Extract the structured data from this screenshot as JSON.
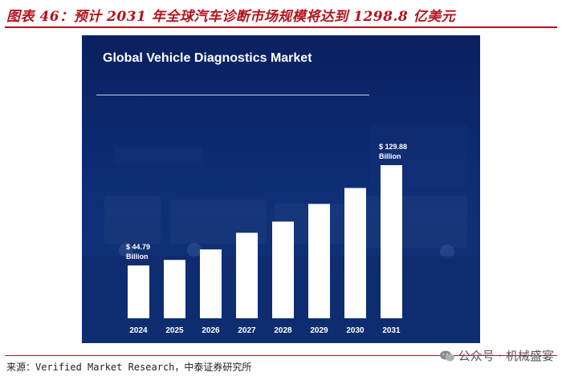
{
  "figure": {
    "title": "图表 46：预计 2031 年全球汽车诊断市场规模将达到 1298.8 亿美元",
    "source": "来源：Verified Market Research，中泰证券研究所",
    "watermark": "公众号 · 机械盛宴",
    "watermark_icon": "wechat-icon"
  },
  "colors": {
    "accent": "#b5121b",
    "card_bg": "#0d2c74",
    "bar": "#ffffff"
  },
  "chart_data": {
    "type": "bar",
    "title": "Global Vehicle Diagnostics Market",
    "categories": [
      "2024",
      "2025",
      "2026",
      "2027",
      "2028",
      "2029",
      "2030",
      "2031"
    ],
    "values": [
      44.79,
      49.5,
      58.4,
      72.5,
      82.0,
      97.0,
      110.5,
      129.88
    ],
    "data_labels": [
      {
        "index": 0,
        "value": "$ 44.79",
        "unit": "Billion"
      },
      {
        "index": 7,
        "value": "$ 129.88",
        "unit": "Billion"
      }
    ],
    "xlabel": "",
    "ylabel": "",
    "grid": false,
    "y_axis_visible": false
  }
}
